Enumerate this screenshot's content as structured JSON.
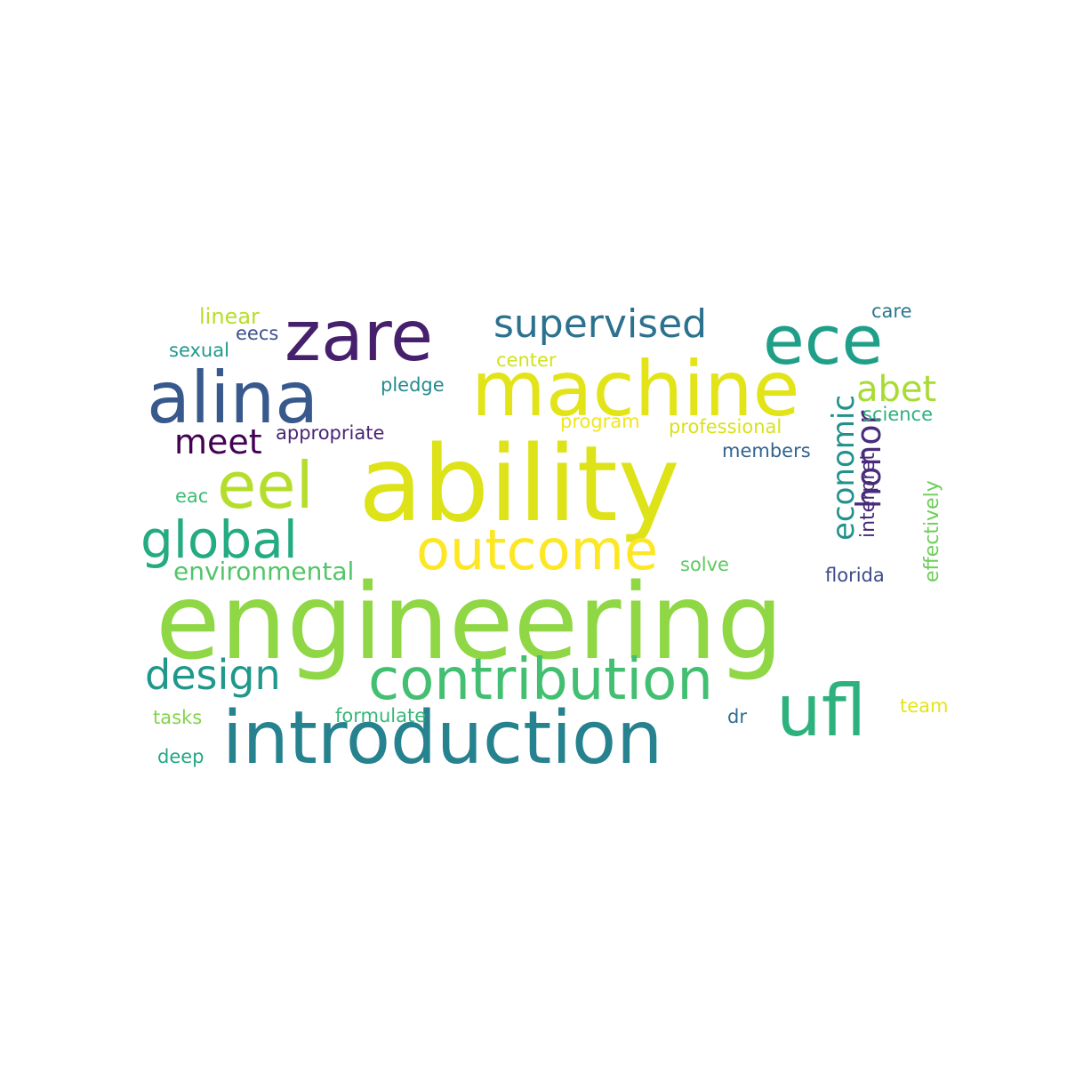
{
  "words": [
    {
      "text": "engineering",
      "color": "#8fd744",
      "rotate": false
    },
    {
      "text": "ability",
      "color": "#dde318",
      "rotate": false
    },
    {
      "text": "machine",
      "color": "#e2e418",
      "rotate": false
    },
    {
      "text": "introduction",
      "color": "#26828e",
      "rotate": false
    },
    {
      "text": "contribution",
      "color": "#43bf71",
      "rotate": false
    },
    {
      "text": "zare",
      "color": "#46206c",
      "rotate": false
    },
    {
      "text": "alina",
      "color": "#38598c",
      "rotate": false
    },
    {
      "text": "ece",
      "color": "#1f9f88",
      "rotate": false
    },
    {
      "text": "ufl",
      "color": "#2db27d",
      "rotate": false
    },
    {
      "text": "outcome",
      "color": "#fde725",
      "rotate": false
    },
    {
      "text": "eel",
      "color": "#b5de2b",
      "rotate": false
    },
    {
      "text": "global",
      "color": "#25ab82",
      "rotate": false
    },
    {
      "text": "supervised",
      "color": "#2c728e",
      "rotate": false
    },
    {
      "text": "design",
      "color": "#1f988b",
      "rotate": false
    },
    {
      "text": "abet",
      "color": "#a8db34",
      "rotate": false
    },
    {
      "text": "meet",
      "color": "#440154",
      "rotate": false
    },
    {
      "text": "honor",
      "color": "#472d7b",
      "rotate": true
    },
    {
      "text": "economic",
      "color": "#21918c",
      "rotate": true
    },
    {
      "text": "environmental",
      "color": "#52c569",
      "rotate": false
    },
    {
      "text": "linear",
      "color": "#b8de29",
      "rotate": false
    },
    {
      "text": "care",
      "color": "#2a788e",
      "rotate": false
    },
    {
      "text": "sexual",
      "color": "#1f9a8a",
      "rotate": false
    },
    {
      "text": "eecs",
      "color": "#3b528b",
      "rotate": false
    },
    {
      "text": "center",
      "color": "#d2e21b",
      "rotate": false
    },
    {
      "text": "pledge",
      "color": "#238a8d",
      "rotate": false
    },
    {
      "text": "science",
      "color": "#2db27d",
      "rotate": false
    },
    {
      "text": "appropriate",
      "color": "#482576",
      "rotate": false
    },
    {
      "text": "program",
      "color": "#f1e51d",
      "rotate": false
    },
    {
      "text": "professional",
      "color": "#d8e219",
      "rotate": false
    },
    {
      "text": "members",
      "color": "#33638d",
      "rotate": false
    },
    {
      "text": "interpret",
      "color": "#482878",
      "rotate": true
    },
    {
      "text": "effectively",
      "color": "#6ece58",
      "rotate": true
    },
    {
      "text": "eac",
      "color": "#3dbc74",
      "rotate": false
    },
    {
      "text": "solve",
      "color": "#5ec962",
      "rotate": false
    },
    {
      "text": "florida",
      "color": "#3e4a89",
      "rotate": false
    },
    {
      "text": "tasks",
      "color": "#84d44b",
      "rotate": false
    },
    {
      "text": "formulate",
      "color": "#35b779",
      "rotate": false
    },
    {
      "text": "dr",
      "color": "#2e6e8e",
      "rotate": false
    },
    {
      "text": "team",
      "color": "#e5e419",
      "rotate": false
    },
    {
      "text": "deep",
      "color": "#22a884",
      "rotate": false
    }
  ]
}
